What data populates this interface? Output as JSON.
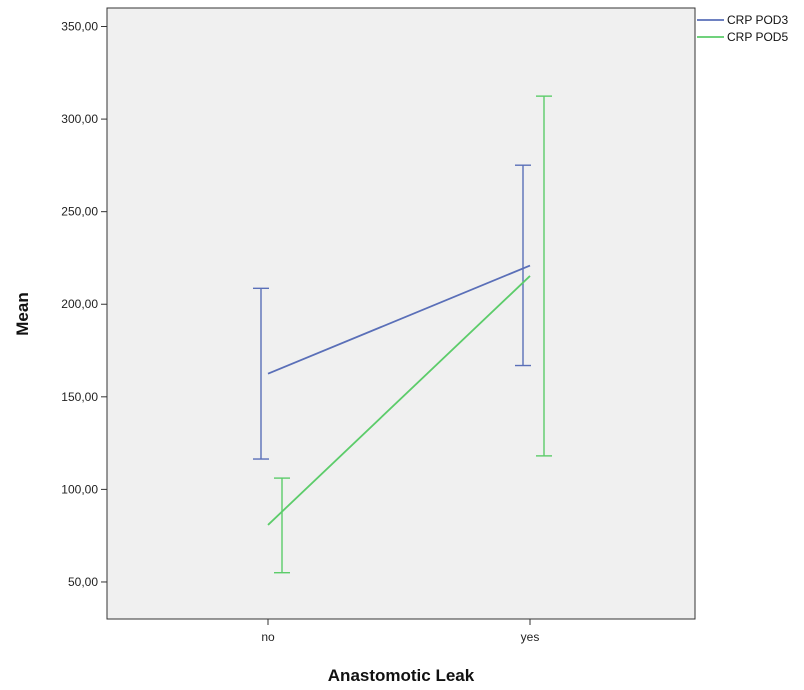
{
  "chart_data": {
    "type": "line",
    "title": "",
    "xlabel": "Anastomotic Leak",
    "ylabel": "Mean",
    "categories": [
      "no",
      "yes"
    ],
    "ylim": [
      30,
      360
    ],
    "yticks": [
      50,
      100,
      150,
      200,
      250,
      300,
      350
    ],
    "ytick_labels": [
      "50,00",
      "100,00",
      "150,00",
      "200,00",
      "250,00",
      "300,00",
      "350,00"
    ],
    "grid": false,
    "legend_position": "top-right",
    "series": [
      {
        "name": "CRP POD3",
        "color": "#5a6fb8",
        "values": [
          162.5,
          220.9
        ],
        "error_low": [
          116.4,
          166.9
        ],
        "error_high": [
          208.6,
          275.1
        ]
      },
      {
        "name": "CRP POD5",
        "color": "#5ccc6a",
        "values": [
          80.8,
          215.3
        ],
        "error_low": [
          55.0,
          118.1
        ],
        "error_high": [
          106.1,
          312.4
        ]
      }
    ]
  }
}
